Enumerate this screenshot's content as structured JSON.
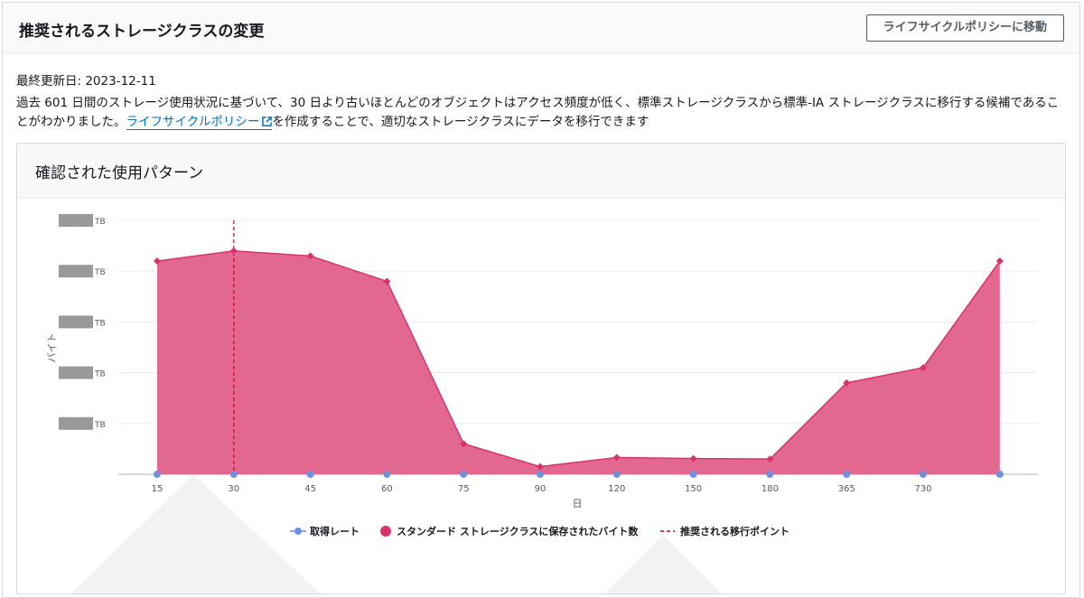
{
  "header": {
    "title": "推奨されるストレージクラスの変更",
    "nav_button_label": "ライフサイクルポリシーに移動"
  },
  "info": {
    "last_updated_label": "最終更新日: 2023-12-11",
    "description_part1": "過去 601 日間のストレージ使用状況に基づいて、30 日より古いほとんどのオブジェクトはアクセス頻度が低く、標準ストレージクラスから標準-IA ストレージクラスに移行する候補であることがわかりました。",
    "lifecycle_link_text": "ライフサイクルポリシー",
    "description_part2": "を作成することで、適切なストレージクラスにデータを移行できます"
  },
  "chart_card": {
    "title": "確認された使用パターン"
  },
  "chart_data": {
    "type": "area",
    "ylabel": "バイト",
    "xlabel": "日",
    "y_tick_labels": [
      "TB",
      "TB",
      "TB",
      "TB",
      "TB"
    ],
    "y_tick_values_redacted": true,
    "categories": [
      "15",
      "30",
      "45",
      "60",
      "75",
      "90",
      "120",
      "150",
      "180",
      "365",
      "730",
      ""
    ],
    "series": [
      {
        "name": "スタンダード ストレージクラスに保存されたバイト数",
        "values": [
          4.2,
          4.4,
          4.3,
          3.8,
          0.6,
          0.15,
          0.33,
          0.31,
          0.3,
          1.8,
          2.1,
          4.2
        ],
        "color": "#d6336c",
        "fill": "#e0608a"
      },
      {
        "name": "取得レート",
        "values": [
          0,
          0,
          0,
          0,
          0,
          0,
          0,
          0,
          0,
          0,
          0,
          0
        ],
        "color": "#6f8fe0"
      }
    ],
    "recommended_transition": {
      "name": "推奨される移行ポイント",
      "x_category": "30",
      "color": "#d0021b"
    },
    "ylim": [
      0,
      5
    ],
    "grid": true,
    "legend_position": "bottom"
  }
}
